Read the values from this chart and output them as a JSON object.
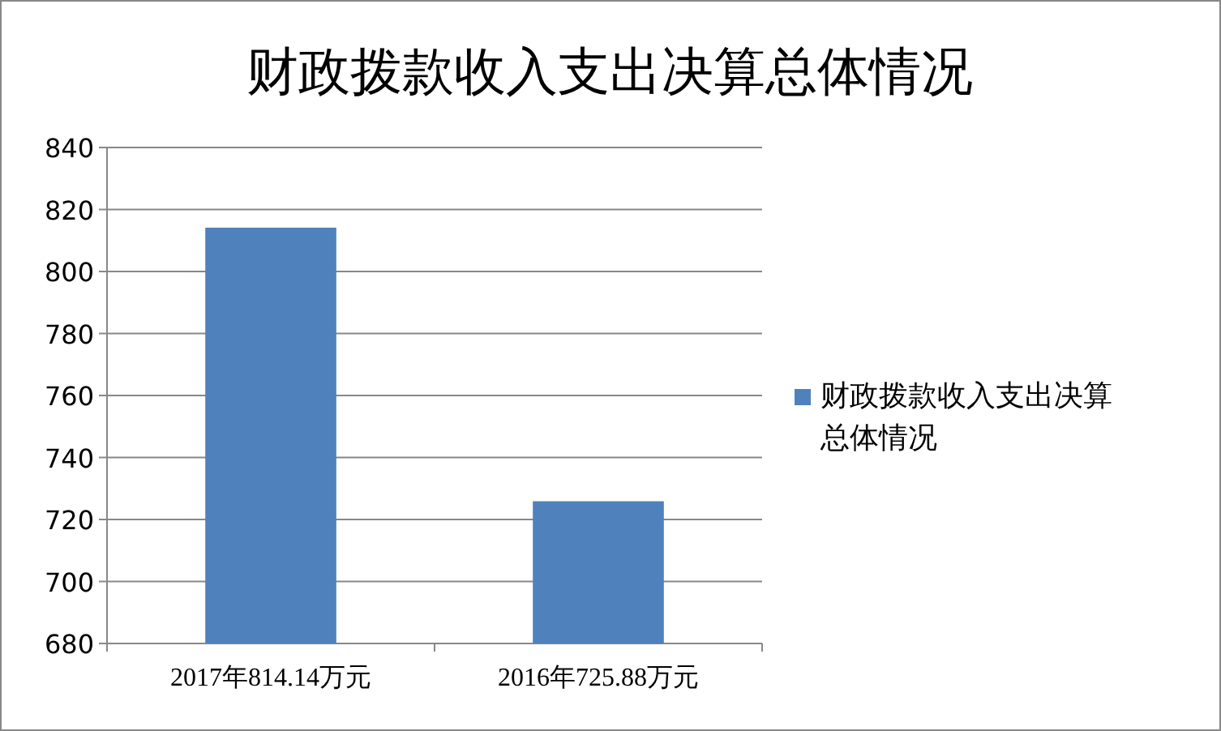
{
  "chart_data": {
    "type": "bar",
    "title": "财政拨款收入支出决算总体情况",
    "categories": [
      "2017年814.14万元",
      "2016年725.88万元"
    ],
    "series": [
      {
        "name": "财政拨款收入支出决算总体情况",
        "color": "#4f81bd",
        "values": [
          814.14,
          725.88
        ]
      }
    ],
    "ylim": [
      680,
      840
    ],
    "yticks": [
      680,
      700,
      720,
      740,
      760,
      780,
      800,
      820,
      840
    ],
    "grid": "y",
    "legend": "right"
  }
}
